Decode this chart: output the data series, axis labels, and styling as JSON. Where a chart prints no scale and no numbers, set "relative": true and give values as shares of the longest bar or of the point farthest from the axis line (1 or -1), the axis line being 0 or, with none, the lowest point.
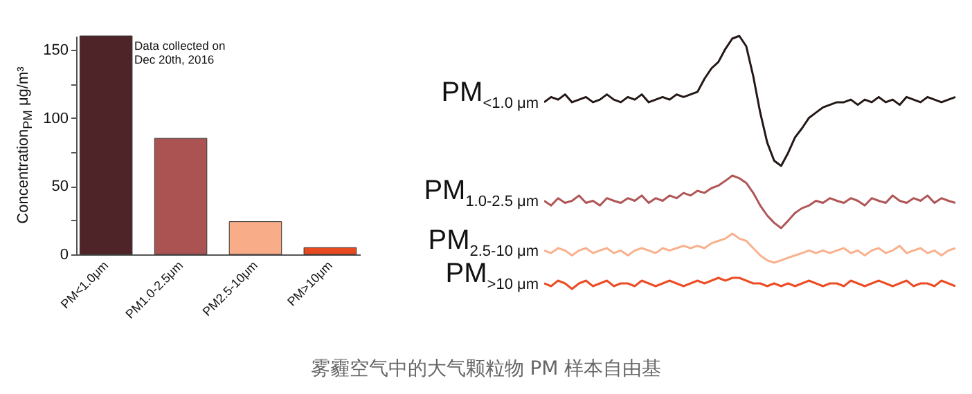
{
  "chart_data": [
    {
      "type": "bar",
      "categories": [
        "PM<1.0μm",
        "PM1.0-2.5μm",
        "PM2.5-10μm",
        "PM>10μm"
      ],
      "values": [
        160,
        85,
        24,
        5
      ],
      "colors": [
        "#4f2428",
        "#ab5252",
        "#f8ad88",
        "#e84a20"
      ],
      "ylabel": "Concentration$_{PM}$ μg/m³",
      "ylim": [
        0,
        160
      ],
      "yticks": [
        0,
        {
          "value": 25,
          "label": null
        },
        50,
        {
          "value": 75,
          "label": null
        },
        100,
        {
          "value": 125,
          "label": null
        },
        150
      ],
      "annotations": [
        "Data collected on Dec 20th, 2016"
      ]
    },
    {
      "type": "line",
      "relative": true,
      "categories": [
        null,
        null,
        null,
        null,
        null,
        null,
        null,
        null,
        null,
        null,
        null,
        null,
        null,
        null,
        null,
        null,
        null,
        null,
        null,
        null,
        null,
        null,
        null,
        null,
        null,
        null,
        null,
        null,
        null,
        null,
        null,
        null,
        null,
        null,
        null,
        null,
        null,
        null,
        null,
        null,
        null,
        null,
        null,
        null,
        null,
        null,
        null,
        null,
        null,
        null,
        null,
        null,
        null,
        null,
        null,
        null,
        null,
        null,
        null,
        null
      ],
      "series": [
        {
          "name": "PM$_{<1.0 μm}$",
          "color": "#231815",
          "values": [
            0.49,
            0.53,
            0.51,
            0.55,
            0.49,
            0.51,
            0.53,
            0.49,
            0.51,
            0.55,
            0.51,
            0.49,
            0.53,
            0.51,
            0.55,
            0.49,
            0.51,
            0.53,
            0.51,
            0.55,
            0.53,
            0.55,
            0.57,
            0.67,
            0.75,
            0.8,
            0.9,
            0.98,
            1,
            0.92,
            0.69,
            0.41,
            0.18,
            0.04,
            0,
            0.1,
            0.22,
            0.29,
            0.37,
            0.41,
            0.45,
            0.47,
            0.49,
            0.49,
            0.51,
            0.47,
            0.51,
            0.49,
            0.53,
            0.49,
            0.51,
            0.47,
            0.53,
            0.51,
            0.49,
            0.53,
            0.51,
            0.49,
            0.51,
            0.53
          ]
        }
      ]
    },
    {
      "type": "line",
      "relative": true,
      "categories": [
        null,
        null,
        null,
        null,
        null,
        null,
        null,
        null,
        null,
        null,
        null,
        null,
        null,
        null,
        null,
        null,
        null,
        null,
        null,
        null,
        null,
        null,
        null,
        null,
        null,
        null,
        null,
        null,
        null,
        null,
        null,
        null,
        null,
        null,
        null,
        null,
        null,
        null,
        null,
        null,
        null,
        null,
        null,
        null,
        null,
        null,
        null,
        null,
        null,
        null,
        null,
        null,
        null,
        null,
        null,
        null,
        null,
        null,
        null,
        null
      ],
      "series": [
        {
          "name": "PM$_{1.0-2.5 μm}$",
          "color": "#b05656",
          "values": [
            0.52,
            0.43,
            0.57,
            0.48,
            0.52,
            0.62,
            0.48,
            0.52,
            0.43,
            0.57,
            0.52,
            0.48,
            0.57,
            0.52,
            0.62,
            0.48,
            0.57,
            0.52,
            0.62,
            0.57,
            0.67,
            0.62,
            0.71,
            0.67,
            0.76,
            0.81,
            0.9,
            1,
            0.95,
            0.86,
            0.67,
            0.43,
            0.24,
            0.1,
            0,
            0.14,
            0.29,
            0.38,
            0.43,
            0.52,
            0.48,
            0.57,
            0.52,
            0.48,
            0.57,
            0.52,
            0.43,
            0.57,
            0.52,
            0.48,
            0.62,
            0.52,
            0.48,
            0.57,
            0.52,
            0.62,
            0.48,
            0.57,
            0.52,
            0.48
          ]
        }
      ]
    },
    {
      "type": "line",
      "relative": true,
      "categories": [
        null,
        null,
        null,
        null,
        null,
        null,
        null,
        null,
        null,
        null,
        null,
        null,
        null,
        null,
        null,
        null,
        null,
        null,
        null,
        null,
        null,
        null,
        null,
        null,
        null,
        null,
        null,
        null,
        null,
        null,
        null,
        null,
        null,
        null,
        null,
        null,
        null,
        null,
        null,
        null,
        null,
        null,
        null,
        null,
        null,
        null,
        null,
        null,
        null,
        null,
        null,
        null,
        null,
        null,
        null,
        null,
        null,
        null,
        null,
        null
      ],
      "series": [
        {
          "name": "PM$_{2.5-10 μm}$",
          "color": "#f9b08c",
          "values": [
            0.42,
            0.33,
            0.5,
            0.42,
            0.25,
            0.42,
            0.5,
            0.33,
            0.42,
            0.5,
            0.33,
            0.42,
            0.25,
            0.42,
            0.5,
            0.42,
            0.33,
            0.5,
            0.42,
            0.5,
            0.58,
            0.5,
            0.58,
            0.5,
            0.67,
            0.75,
            0.83,
            1,
            0.83,
            0.75,
            0.5,
            0.25,
            0.08,
            0,
            0.08,
            0.17,
            0.25,
            0.33,
            0.42,
            0.33,
            0.42,
            0.33,
            0.42,
            0.5,
            0.33,
            0.42,
            0.25,
            0.42,
            0.5,
            0.33,
            0.42,
            0.58,
            0.33,
            0.42,
            0.5,
            0.33,
            0.42,
            0.25,
            0.42,
            0.5
          ]
        }
      ]
    },
    {
      "type": "line",
      "relative": true,
      "categories": [
        null,
        null,
        null,
        null,
        null,
        null,
        null,
        null,
        null,
        null,
        null,
        null,
        null,
        null,
        null,
        null,
        null,
        null,
        null,
        null,
        null,
        null,
        null,
        null,
        null,
        null,
        null,
        null,
        null,
        null,
        null,
        null,
        null,
        null,
        null,
        null,
        null,
        null,
        null,
        null,
        null,
        null,
        null,
        null,
        null,
        null,
        null,
        null,
        null,
        null,
        null,
        null,
        null,
        null,
        null,
        null,
        null,
        null,
        null,
        null
      ],
      "series": [
        {
          "name": "PM$_{>10 μm}$",
          "color": "#ec4d25",
          "values": [
            0.5,
            0.25,
            0.75,
            0.5,
            0,
            0.5,
            0.75,
            0.25,
            0.5,
            0.75,
            0.25,
            0.5,
            0.5,
            0.25,
            0.75,
            0.5,
            0.25,
            0.5,
            0.75,
            0.5,
            0.25,
            0.5,
            0.75,
            0.5,
            0.75,
            1,
            0.75,
            1,
            1,
            0.75,
            0.5,
            0.5,
            0.25,
            0.5,
            0.25,
            0.5,
            0.25,
            0.5,
            0.75,
            0.5,
            0.25,
            0.5,
            0.5,
            0.25,
            0.75,
            0.5,
            0.25,
            0.5,
            0.75,
            0.5,
            0.25,
            0.5,
            0.75,
            0.25,
            0.5,
            0.5,
            0.25,
            0.75,
            0.5,
            0.25
          ]
        }
      ],
      "annotations": [
        "雾霾空气中的大气颗粒物 PM 样本自由基"
      ]
    }
  ]
}
